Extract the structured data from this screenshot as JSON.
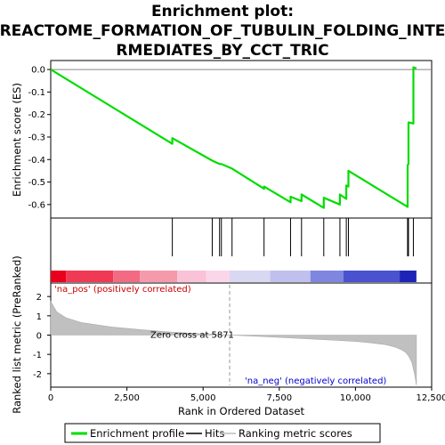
{
  "chart_data": {
    "type": "line",
    "title_lines": [
      "Enrichment plot:",
      "REACTOME_FORMATION_OF_TUBULIN_FOLDING_INTE",
      "RMEDIATES_BY_CCT_TRIC"
    ],
    "xlabel": "Rank in Ordered Dataset",
    "x_ticks": [
      0,
      2500,
      5000,
      7500,
      10000,
      12500
    ],
    "x_tick_labels": [
      "0",
      "2,500",
      "5,000",
      "7,500",
      "10,000",
      "12,500"
    ],
    "xlim": [
      0,
      12500
    ],
    "top_panel": {
      "ylabel": "Enrichment score (ES)",
      "ylim": [
        -0.66,
        0.04
      ],
      "y_ticks": [
        0.0,
        -0.1,
        -0.2,
        -0.3,
        -0.4,
        -0.5,
        -0.6
      ],
      "y_tick_labels": [
        "0.0",
        "-0.1",
        "-0.2",
        "-0.3",
        "-0.4",
        "-0.5",
        "-0.6"
      ],
      "series": [
        {
          "name": "Enrichment profile",
          "x": [
            0,
            3990,
            3990,
            5300,
            5300,
            5540,
            5540,
            5600,
            5600,
            5950,
            5950,
            7000,
            7000,
            7870,
            7870,
            8230,
            8230,
            8960,
            8960,
            9490,
            9490,
            9700,
            9700,
            9770,
            9770,
            11710,
            11710,
            11740,
            11740,
            11900,
            11900,
            12000
          ],
          "y": [
            0.0,
            -0.33,
            -0.305,
            -0.405,
            -0.405,
            -0.42,
            -0.42,
            -0.42,
            -0.42,
            -0.44,
            -0.44,
            -0.53,
            -0.52,
            -0.59,
            -0.565,
            -0.585,
            -0.555,
            -0.615,
            -0.57,
            -0.6,
            -0.555,
            -0.575,
            -0.515,
            -0.52,
            -0.45,
            -0.61,
            -0.425,
            -0.42,
            -0.235,
            -0.24,
            0.01,
            0.005
          ]
        }
      ],
      "hits": [
        3990,
        5300,
        5540,
        5600,
        5950,
        7000,
        7870,
        8230,
        8960,
        9490,
        9700,
        9770,
        11710,
        11740,
        11900
      ]
    },
    "bottom_panel": {
      "ylabel": "Ranked list metric (PreRanked)",
      "ylim": [
        -2.7,
        2.7
      ],
      "y_ticks": [
        2,
        1,
        0,
        -1,
        -2
      ],
      "y_tick_labels": [
        "2",
        "1",
        "0",
        "-1",
        "-2"
      ],
      "metric_x": [
        0,
        200,
        500,
        1000,
        2000,
        3000,
        4000,
        5000,
        5871,
        7000,
        8000,
        9000,
        10000,
        10500,
        11000,
        11300,
        11500,
        11650,
        11750,
        11850,
        11950,
        12000
      ],
      "metric_y": [
        1.75,
        1.2,
        0.9,
        0.65,
        0.42,
        0.27,
        0.15,
        0.06,
        0.0,
        -0.08,
        -0.16,
        -0.24,
        -0.33,
        -0.4,
        -0.5,
        -0.62,
        -0.75,
        -0.9,
        -1.1,
        -1.4,
        -2.1,
        -2.6
      ],
      "zero_cross": 5871,
      "zero_cross_label": "Zero cross at 5871",
      "pos_label": "'na_pos' (positively correlated)",
      "neg_label": "'na_neg' (negatively correlated)"
    },
    "colorbar": [
      {
        "x0": 0,
        "x1": 500,
        "color": "#e8001c"
      },
      {
        "x0": 500,
        "x1": 2050,
        "color": "#f03a55"
      },
      {
        "x0": 2050,
        "x1": 2930,
        "color": "#f26b82"
      },
      {
        "x0": 2930,
        "x1": 4150,
        "color": "#f59aab"
      },
      {
        "x0": 4150,
        "x1": 5100,
        "color": "#f9c2d7"
      },
      {
        "x0": 5100,
        "x1": 5871,
        "color": "#fbd6ea"
      },
      {
        "x0": 5871,
        "x1": 7200,
        "color": "#d8d8f3"
      },
      {
        "x0": 7200,
        "x1": 8520,
        "color": "#c0c0ee"
      },
      {
        "x0": 8520,
        "x1": 9600,
        "color": "#7e86e0"
      },
      {
        "x0": 9600,
        "x1": 11450,
        "color": "#4a52cf"
      },
      {
        "x0": 11450,
        "x1": 12000,
        "color": "#1e24b8"
      }
    ],
    "legend": {
      "items": [
        {
          "label": "Enrichment profile",
          "color": "#00dd00"
        },
        {
          "label": "Hits",
          "color": "#000000"
        },
        {
          "label": "Ranking metric scores",
          "color": "#bbbbbb"
        }
      ]
    },
    "colors": {
      "profile": "#00dd00",
      "metric_fill": "#c0c0c0",
      "pos_label": "#cc0000",
      "neg_label": "#0000cc",
      "zero_cross_line": "#999999"
    }
  }
}
